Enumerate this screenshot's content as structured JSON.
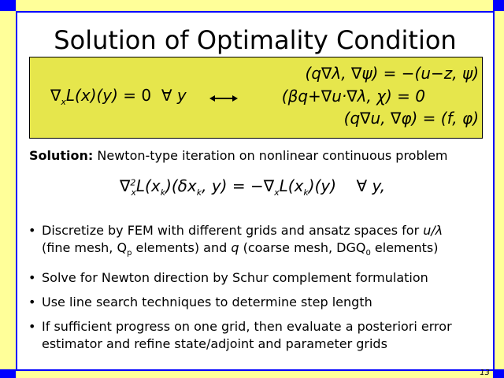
{
  "title": "Solution of Optimality Condition",
  "optimality_box": {
    "lhs": "∇ₓL(x)(y) = 0  ∀ y",
    "equations": [
      "(q∇λ, ∇ψ) = −(u−z, ψ)",
      "(βq+∇u·∇λ, χ) = 0",
      "(q∇u, ∇φ) = (f, φ)"
    ]
  },
  "solution": {
    "label": "Solution:",
    "text": "Newton-type iteration on nonlinear continuous problem",
    "equation": "∇²ₓL(xₖ)(δxₖ, y) = −∇ₓL(xₖ)(y)   ∀ y,"
  },
  "bullets": [
    {
      "parts": [
        "Discretize by FEM with different grids and ansatz spaces for ",
        "u/λ",
        " (fine mesh, Q",
        "p",
        " elements)  and  ",
        "q",
        "  (coarse mesh, DGQ",
        "0",
        " elements)"
      ]
    },
    {
      "text": "Solve for Newton direction by Schur complement formulation"
    },
    {
      "text": "Use line search techniques to determine step length"
    },
    {
      "text": "If sufficient progress on one grid, then evaluate a posteriori error estimator and refine state/adjoint and parameter grids"
    }
  ],
  "page_number": "13",
  "colors": {
    "background": "#ffff99",
    "frame": "#0000ff",
    "box": "#e6e64c"
  }
}
